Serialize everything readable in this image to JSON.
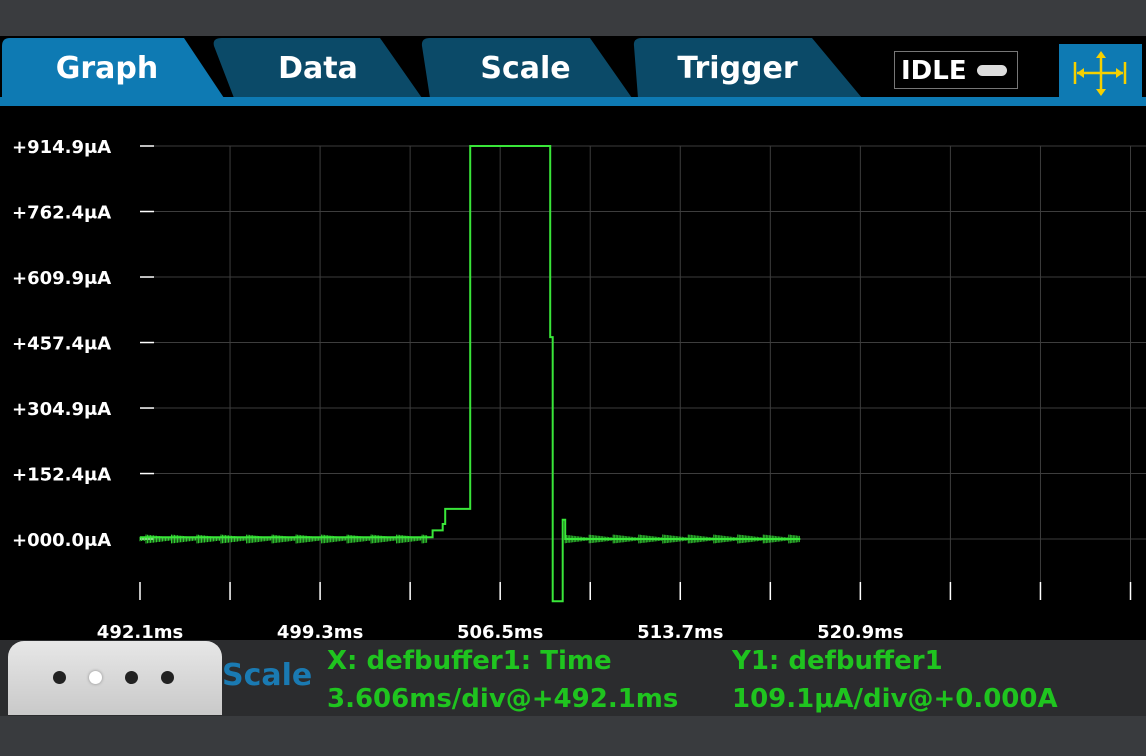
{
  "tabs": [
    {
      "label": "Graph",
      "active": true
    },
    {
      "label": "Data",
      "active": false
    },
    {
      "label": "Scale",
      "active": false
    },
    {
      "label": "Trigger",
      "active": false
    }
  ],
  "status": {
    "label": "IDLE"
  },
  "footer": {
    "scale_label": "Scale",
    "x_title": "X: defbuffer1: Time",
    "x_scale": "3.606ms/div@+492.1ms",
    "y_title": "Y1: defbuffer1",
    "y_scale": "109.1μA/div@+0.000A",
    "page_dots": 4,
    "active_dot": 1
  },
  "colors": {
    "trace": "#39e639",
    "tab_active": "#0e7ab3",
    "tab_inactive": "#0b4a68",
    "info_text": "#1fc41f"
  },
  "icons": {
    "pan_zoom": "pan-zoom-icon",
    "status": "status-pill-icon"
  },
  "chart_data": {
    "type": "line",
    "ytick_labels": [
      "+914.9μA",
      "+762.4μA",
      "+609.9μA",
      "+457.4μA",
      "+304.9μA",
      "+152.4μA",
      "+000.0μA"
    ],
    "ytick_values": [
      914.9,
      762.4,
      609.9,
      457.4,
      304.9,
      152.4,
      0.0
    ],
    "xtick_labels": [
      "492.1ms",
      "499.3ms",
      "506.5ms",
      "513.7ms",
      "520.9ms"
    ],
    "xtick_values": [
      492.1,
      499.3,
      506.5,
      513.7,
      520.9
    ],
    "xlim": [
      492.1,
      531.8
    ],
    "ylim": [
      -145,
      960
    ],
    "grid": true,
    "series": [
      {
        "x": [
          492.1,
          503.6,
          503.8,
          504.2,
          504.3,
          505.2,
          505.3,
          506.1,
          507.0,
          508.4,
          508.5,
          508.6,
          509.0,
          509.1,
          510.3,
          518.5
        ],
        "y": [
          4,
          4,
          20,
          35,
          70,
          70,
          914.9,
          914.9,
          914.9,
          914.9,
          470,
          -145,
          45,
          0,
          0,
          0
        ]
      }
    ]
  }
}
